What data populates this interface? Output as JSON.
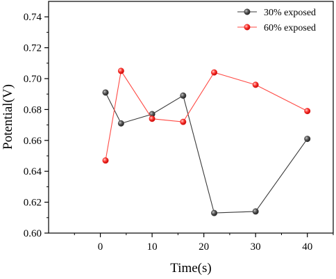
{
  "chart_data": {
    "type": "line",
    "xlabel": "Time(s)",
    "ylabel": "Potential(V)",
    "xlim": [
      -10,
      45
    ],
    "ylim": [
      0.6,
      0.75
    ],
    "x_ticks": [
      0,
      10,
      20,
      30,
      40
    ],
    "y_ticks": [
      0.6,
      0.62,
      0.64,
      0.66,
      0.68,
      0.7,
      0.72,
      0.74
    ],
    "y_tick_decimals": 2,
    "grid": false,
    "legend_position": "top-right",
    "series": [
      {
        "name": "30% exposed",
        "color": "#3a3a3a",
        "marker": "circle",
        "x": [
          1,
          4,
          10,
          16,
          22,
          30,
          40
        ],
        "y": [
          0.691,
          0.671,
          0.677,
          0.689,
          0.613,
          0.614,
          0.661
        ]
      },
      {
        "name": "60% exposed",
        "color": "#e8231f",
        "marker": "circle",
        "x": [
          1,
          4,
          10,
          16,
          22,
          30,
          40
        ],
        "y": [
          0.647,
          0.705,
          0.674,
          0.672,
          0.704,
          0.696,
          0.679
        ]
      }
    ]
  }
}
